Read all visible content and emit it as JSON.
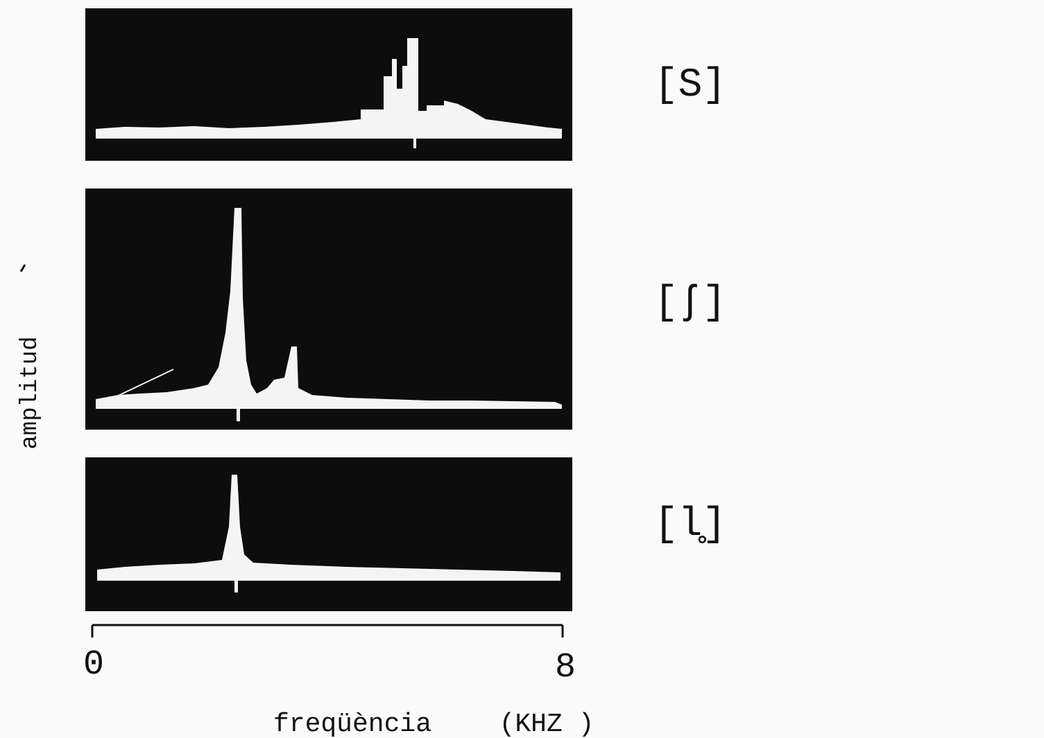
{
  "figure": {
    "panels": [
      {
        "label": "[S]"
      },
      {
        "label": "[ʃ]"
      },
      {
        "label": "[l̥]"
      }
    ],
    "y_label": "amplitud",
    "x_ticks": [
      "0",
      "8"
    ],
    "x_label": "freqüència",
    "x_unit": "(KHZ )"
  }
}
